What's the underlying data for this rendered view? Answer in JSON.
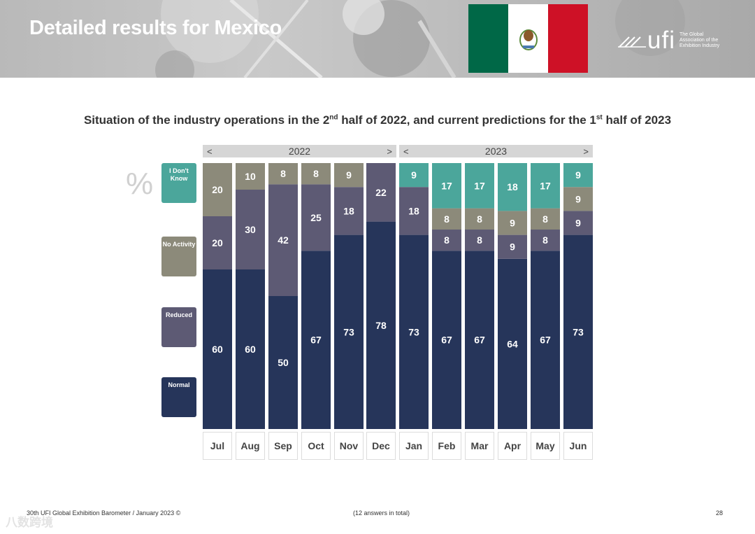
{
  "header": {
    "title": "Detailed results for Mexico",
    "logo_text": "ufi",
    "logo_tagline": "The Global Association of the Exhibition Industry"
  },
  "subtitle": {
    "part1": "Situation of the industry operations in the 2",
    "sup1": "nd",
    "part2": " half of 2022, and current predictions for the 1",
    "sup2": "st",
    "part3": "  half of 2023"
  },
  "unit_label": "%",
  "year_bands": [
    {
      "label": "2022",
      "left_arrow": "<",
      "right_arrow": ">"
    },
    {
      "label": "2023",
      "left_arrow": "<",
      "right_arrow": ">"
    }
  ],
  "legend": [
    {
      "key": "dont_know",
      "label": "I Don't Know",
      "color": "#4ba69b"
    },
    {
      "key": "no_activity",
      "label": "No Activity",
      "color": "#8c8a7a"
    },
    {
      "key": "reduced",
      "label": "Reduced",
      "color": "#5d5a74"
    },
    {
      "key": "normal",
      "label": "Normal",
      "color": "#26355a"
    }
  ],
  "chart_data": {
    "type": "bar",
    "stacked": true,
    "title": "Situation of the industry operations in the 2nd half of 2022, and current predictions for the 1st half of 2023",
    "ylabel": "%",
    "ylim": [
      0,
      100
    ],
    "categories": [
      "Jul",
      "Aug",
      "Sep",
      "Oct",
      "Nov",
      "Dec",
      "Jan",
      "Feb",
      "Mar",
      "Apr",
      "May",
      "Jun"
    ],
    "series": [
      {
        "name": "Normal",
        "color": "#26355a",
        "values": [
          60,
          60,
          50,
          67,
          73,
          78,
          73,
          67,
          67,
          64,
          67,
          73
        ]
      },
      {
        "name": "Reduced",
        "color": "#5d5a74",
        "values": [
          20,
          30,
          42,
          25,
          18,
          22,
          18,
          8,
          8,
          9,
          8,
          9
        ]
      },
      {
        "name": "No Activity",
        "color": "#8c8a7a",
        "values": [
          20,
          10,
          8,
          8,
          9,
          0,
          0,
          8,
          8,
          9,
          8,
          9
        ]
      },
      {
        "name": "I Don't Know",
        "color": "#4ba69b",
        "values": [
          0,
          0,
          0,
          0,
          0,
          0,
          9,
          17,
          17,
          18,
          17,
          9
        ]
      }
    ]
  },
  "footer": {
    "left": "30th UFI Global Exhibition Barometer / January 2023 ©",
    "center": "(12 answers in total)",
    "page": "28"
  },
  "watermark": "八数跨境"
}
